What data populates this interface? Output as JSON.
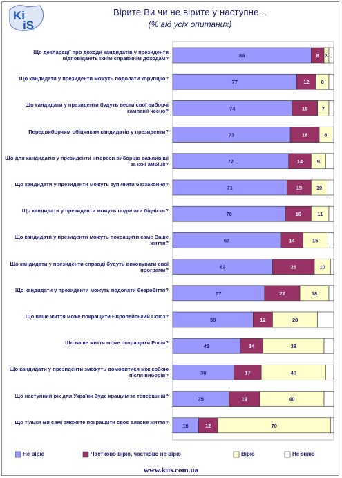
{
  "logo": {
    "text_top": "Ki",
    "text_bottom": "iS"
  },
  "header": {
    "title": "Вірите Ви чи не вірите у наступне...",
    "subtitle": "(% від усіх опитаних)"
  },
  "footer": {
    "url": "www.kiis.com.ua"
  },
  "colors": {
    "ne_viryu": "#9999ff",
    "chastkovo": "#993366",
    "viryu": "#ffffcc",
    "ne_znayu": "#ffffff",
    "text": "#1b1b6e"
  },
  "chart_data": {
    "type": "bar",
    "orientation": "horizontal",
    "stacked": true,
    "categories": [
      "Що декларації про доходи кандидатів у президенти відповідають їхнім справжнім доходам?",
      "Що кандидати у президенти можуть подолати корупцію?",
      "Що кандидати у президенти будуть вести свої виборчі кампанії чесно?",
      "Передвиборчим обіцянкам кандидатів у президенти?",
      "Що для кандидатів у президенти інтереси виборців важливіші за їхні амбіції?",
      "Що кандидати у президенти можуть зупинити беззаконня?",
      "Що кандидати у президенти можуть подолати бідність?",
      "Що кандидати у президенти можуть покращити саме Ваше життя?",
      "Що кандидати у президенти справді будуть виконувати свої програми?",
      "Що кандидати у президенти можуть подолати безробіття?",
      "Що ваше життя може покращити Європейський Союз?",
      "Що ваше життя може покращити Росія?",
      "Що кандидати у президенти зможуть домовитися між собою після виборів?",
      "Що наступний рік для України буде кращим за теперішній?",
      "Що тільки Ви самі зможете покращити своє власне життя?"
    ],
    "series": [
      {
        "name": "Не вірю",
        "values": [
          86,
          77,
          74,
          73,
          72,
          71,
          70,
          67,
          62,
          57,
          50,
          42,
          38,
          35,
          16
        ]
      },
      {
        "name": "Частково вірю, частково не вірю",
        "values": [
          8,
          12,
          16,
          18,
          14,
          15,
          16,
          14,
          26,
          22,
          12,
          14,
          17,
          19,
          12
        ]
      },
      {
        "name": "Вірю",
        "values": [
          3,
          8,
          7,
          8,
          9,
          10,
          11,
          15,
          10,
          18,
          28,
          38,
          40,
          40,
          70
        ]
      },
      {
        "name": "Не знаю",
        "values": [
          3,
          3,
          3,
          1,
          5,
          4,
          3,
          4,
          2,
          3,
          10,
          6,
          5,
          6,
          2
        ]
      }
    ],
    "xlim": [
      0,
      100
    ],
    "legend_position": "bottom"
  }
}
